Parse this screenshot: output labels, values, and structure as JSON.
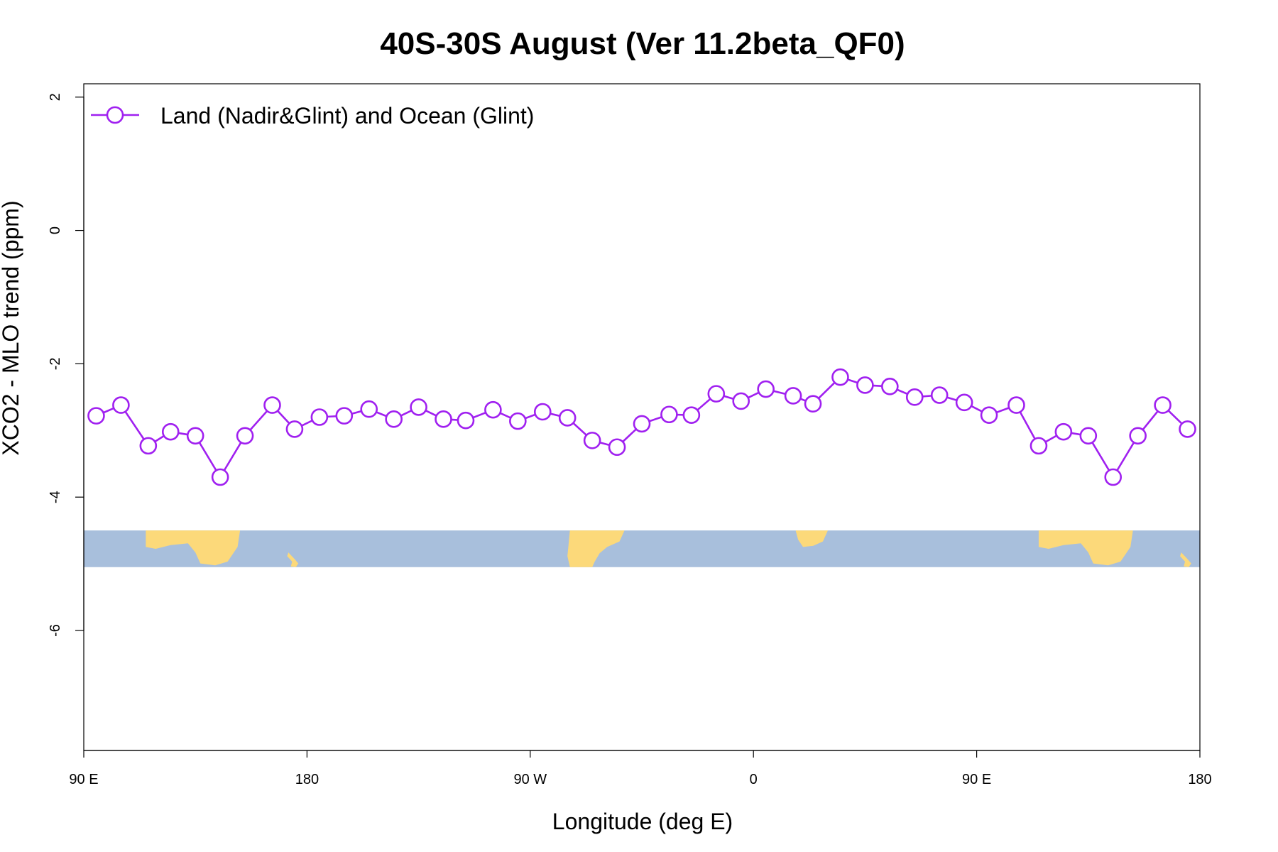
{
  "chart_data": {
    "type": "line",
    "title": "40S-30S August (Ver 11.2beta_QF0)",
    "xlabel": "Longitude (deg E)",
    "ylabel": "XCO2 - MLO trend (ppm)",
    "xlim": [
      90,
      540
    ],
    "ylim": [
      -7.8,
      2.2
    ],
    "x_ticks": [
      {
        "value": 90,
        "label": "90 E"
      },
      {
        "value": 180,
        "label": "180"
      },
      {
        "value": 270,
        "label": "90 W"
      },
      {
        "value": 360,
        "label": "0"
      },
      {
        "value": 450,
        "label": "90 E"
      },
      {
        "value": 540,
        "label": "180"
      }
    ],
    "y_ticks": [
      {
        "value": 2,
        "label": "2"
      },
      {
        "value": 0,
        "label": "0"
      },
      {
        "value": -2,
        "label": "-2"
      },
      {
        "value": -4,
        "label": "-4"
      },
      {
        "value": -6,
        "label": "-6"
      }
    ],
    "grid": false,
    "legend_position": "top-left",
    "map_strip": {
      "y_range": [
        -5.05,
        -4.5
      ],
      "ocean_color": "#a8bfdc",
      "land_color": "#fcd97a"
    },
    "series": [
      {
        "name": "Land (Nadir&Glint) and Ocean (Glint)",
        "color": "#a020f0",
        "marker": "open-circle",
        "x": [
          95,
          105,
          116,
          125,
          135,
          145,
          155,
          166,
          175,
          185,
          195,
          205,
          215,
          225,
          235,
          244,
          255,
          265,
          275,
          285,
          295,
          305,
          315,
          326,
          335,
          345,
          355,
          365,
          376,
          384,
          395,
          405,
          415,
          425,
          435,
          445,
          455,
          466,
          475,
          485,
          495,
          505,
          515,
          525,
          535
        ],
        "y": [
          -2.78,
          -2.62,
          -3.23,
          -3.02,
          -3.08,
          -3.7,
          -3.08,
          -2.62,
          -2.98,
          -2.8,
          -2.78,
          -2.68,
          -2.83,
          -2.65,
          -2.83,
          -2.85,
          -2.69,
          -2.86,
          -2.72,
          -2.81,
          -3.15,
          -3.25,
          -2.9,
          -2.76,
          -2.77,
          -2.45,
          -2.56,
          -2.38,
          -2.48,
          -2.6,
          -2.2,
          -2.32,
          -2.34,
          -2.5,
          -2.47,
          -2.58,
          -2.77,
          -2.62,
          -3.23,
          -3.02,
          -3.08,
          -3.7,
          -3.08,
          -2.62,
          -2.98
        ]
      }
    ]
  }
}
